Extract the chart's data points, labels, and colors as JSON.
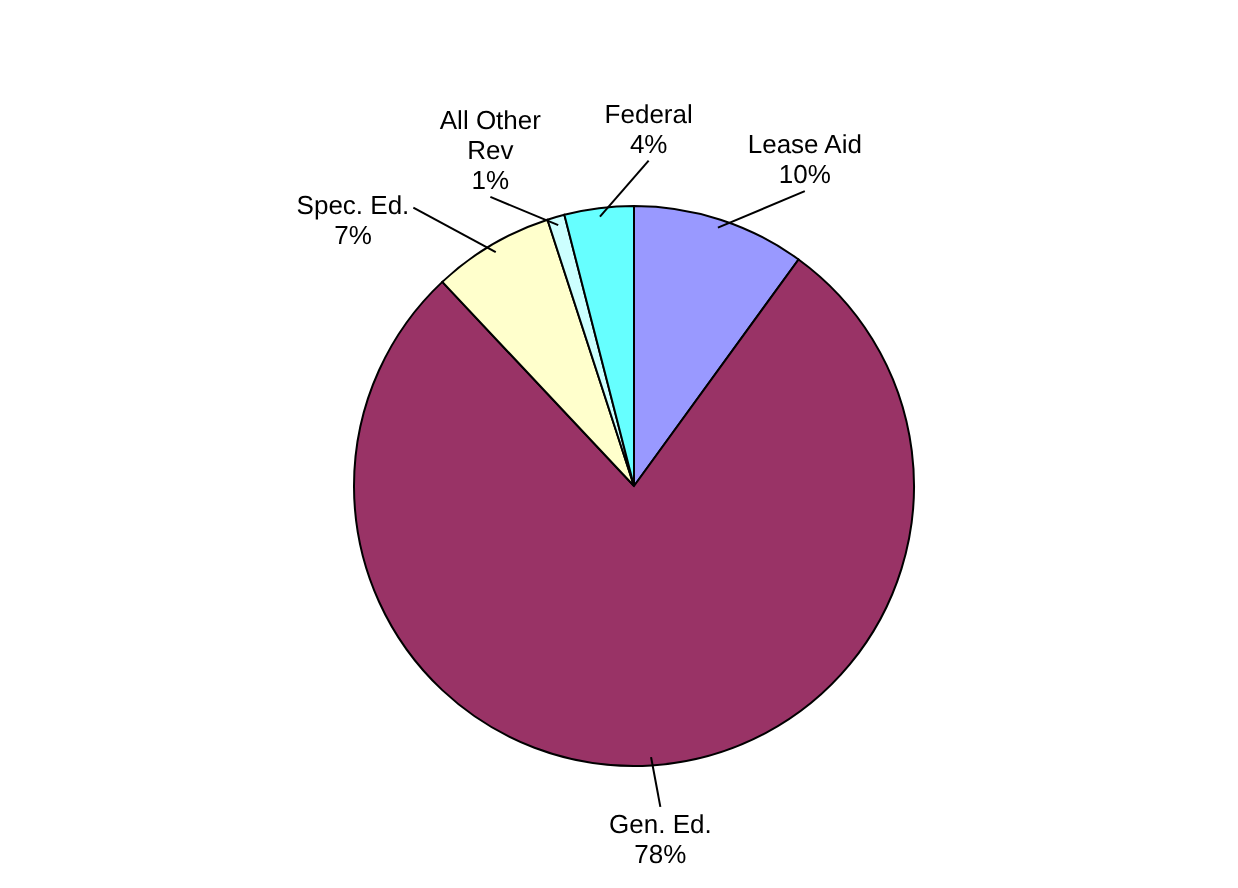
{
  "chart_data": {
    "type": "pie",
    "categories": [
      "Lease Aid",
      "Gen. Ed.",
      "Spec. Ed.",
      "All Other Rev",
      "Federal"
    ],
    "values": [
      10,
      78,
      7,
      1,
      4
    ],
    "colors": [
      "#9999ff",
      "#993366",
      "#ffffcc",
      "#ccffff",
      "#66ffff"
    ],
    "value_labels": [
      "10%",
      "78%",
      "7%",
      "1%",
      "4%"
    ]
  }
}
